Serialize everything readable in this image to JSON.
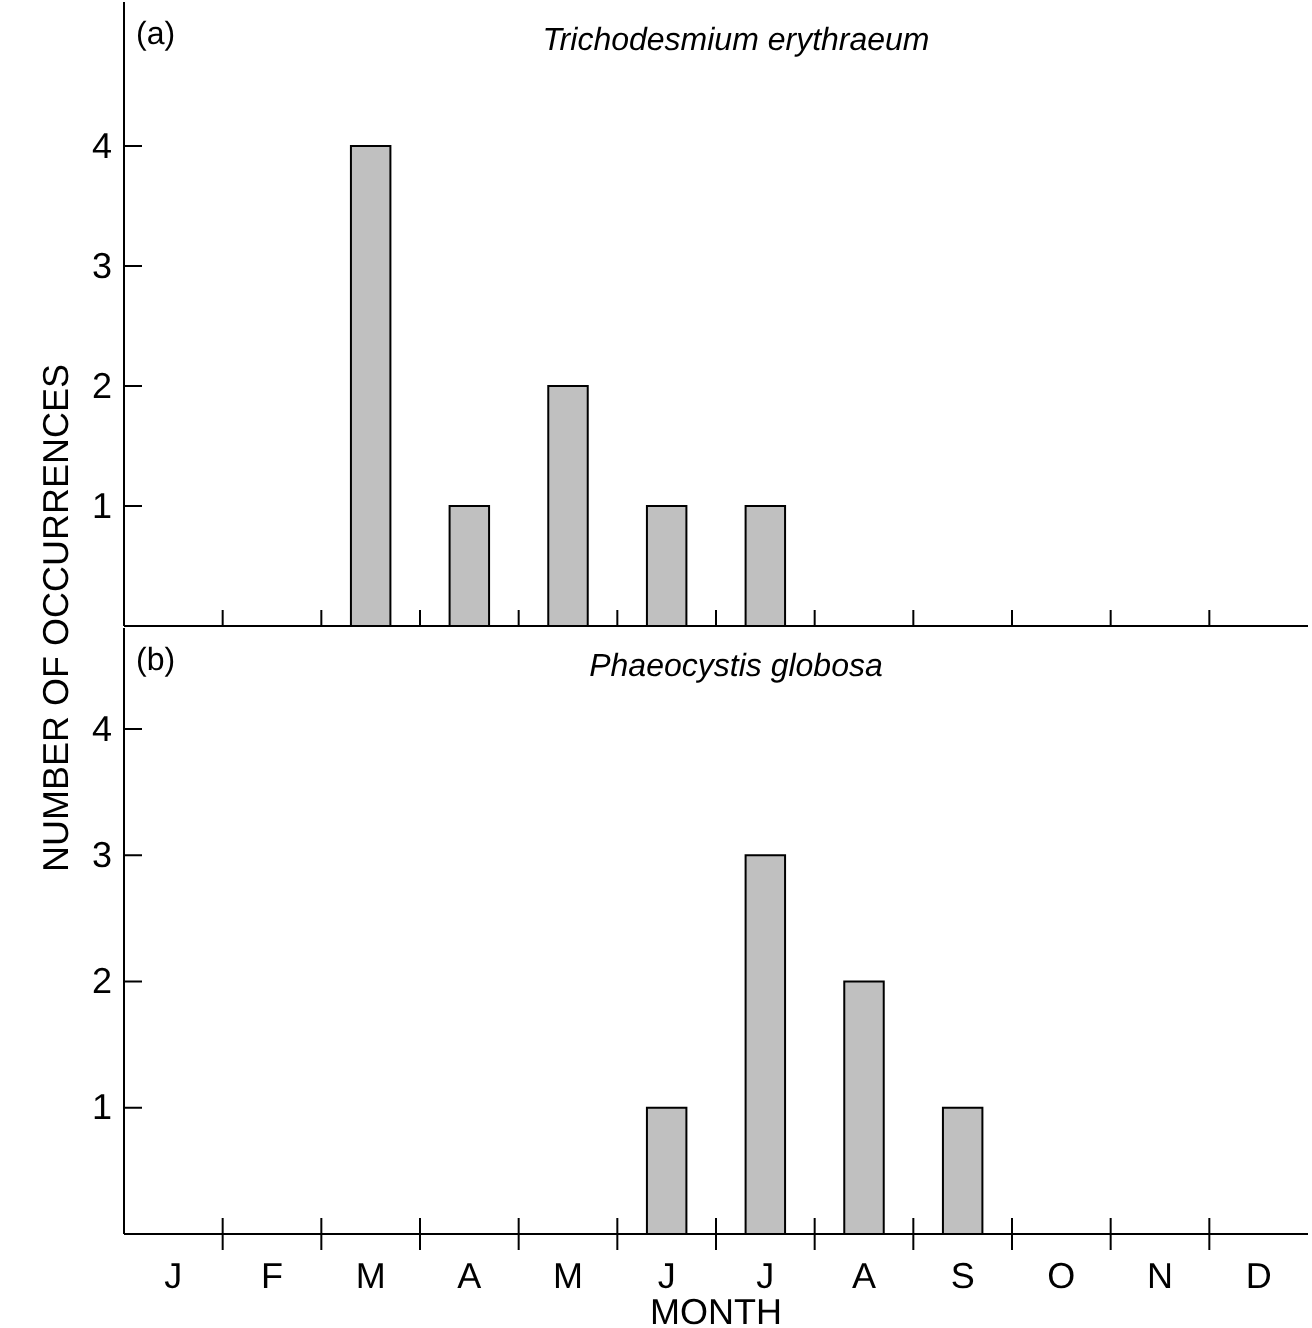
{
  "chart_data": [
    {
      "type": "bar",
      "title": "Trichodesmium erythraeum",
      "ylabel": "NUMBER OF OCCURRENCES",
      "annotations": [
        "(a)"
      ],
      "categories": [
        null,
        null,
        null,
        null,
        null,
        null,
        null,
        null,
        null,
        null,
        null,
        null
      ],
      "series": [
        {
          "color": "#c0c0c0",
          "values": [
            0,
            0,
            4,
            1,
            2,
            1,
            1,
            0,
            0,
            0,
            0,
            0
          ]
        }
      ],
      "ylim": [
        0,
        5.2
      ],
      "yticks": [
        1,
        2,
        3,
        4
      ],
      "tick_labels": "y",
      "grid": false
    },
    {
      "type": "bar",
      "title": "Phaeocystis globosa",
      "xlabel": "MONTH",
      "annotations": [
        "(b)"
      ],
      "categories": [
        "J",
        "F",
        "M",
        "A",
        "M",
        "J",
        "J",
        "A",
        "S",
        "O",
        "N",
        "D"
      ],
      "series": [
        {
          "color": "#c0c0c0",
          "values": [
            0,
            0,
            0,
            0,
            0,
            1,
            3,
            2,
            1,
            0,
            0,
            0
          ]
        }
      ],
      "ylim": [
        0,
        4.8
      ],
      "yticks": [
        1,
        2,
        3,
        4
      ],
      "grid": false
    }
  ]
}
